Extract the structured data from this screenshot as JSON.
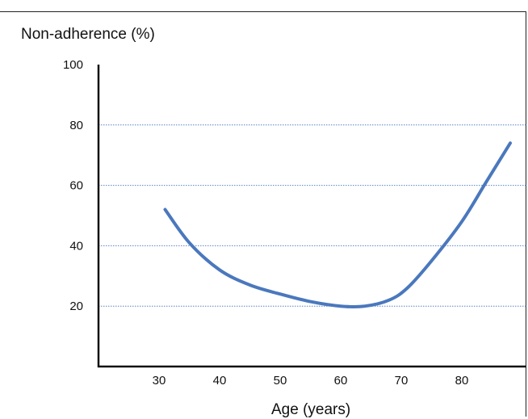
{
  "chart_data": {
    "type": "line",
    "title": "",
    "xlabel": "Age (years)",
    "ylabel": "Non-adherence (%)",
    "xlim": [
      20,
      90
    ],
    "ylim": [
      0,
      100
    ],
    "x_ticks": [
      30,
      40,
      50,
      60,
      70,
      80
    ],
    "y_ticks": [
      20,
      40,
      60,
      80,
      100
    ],
    "gridlines_y": [
      20,
      40,
      60,
      80
    ],
    "grid": "horizontal dotted",
    "series": [
      {
        "color": "#4a78bd",
        "points": [
          {
            "x": 31,
            "y": 52
          },
          {
            "x": 35,
            "y": 41
          },
          {
            "x": 40,
            "y": 32
          },
          {
            "x": 45,
            "y": 27
          },
          {
            "x": 50,
            "y": 24
          },
          {
            "x": 55,
            "y": 21.5
          },
          {
            "x": 60,
            "y": 20
          },
          {
            "x": 64,
            "y": 20
          },
          {
            "x": 68,
            "y": 22
          },
          {
            "x": 71,
            "y": 26
          },
          {
            "x": 75,
            "y": 35
          },
          {
            "x": 80,
            "y": 48
          },
          {
            "x": 84,
            "y": 61
          },
          {
            "x": 88,
            "y": 74
          }
        ]
      }
    ]
  }
}
